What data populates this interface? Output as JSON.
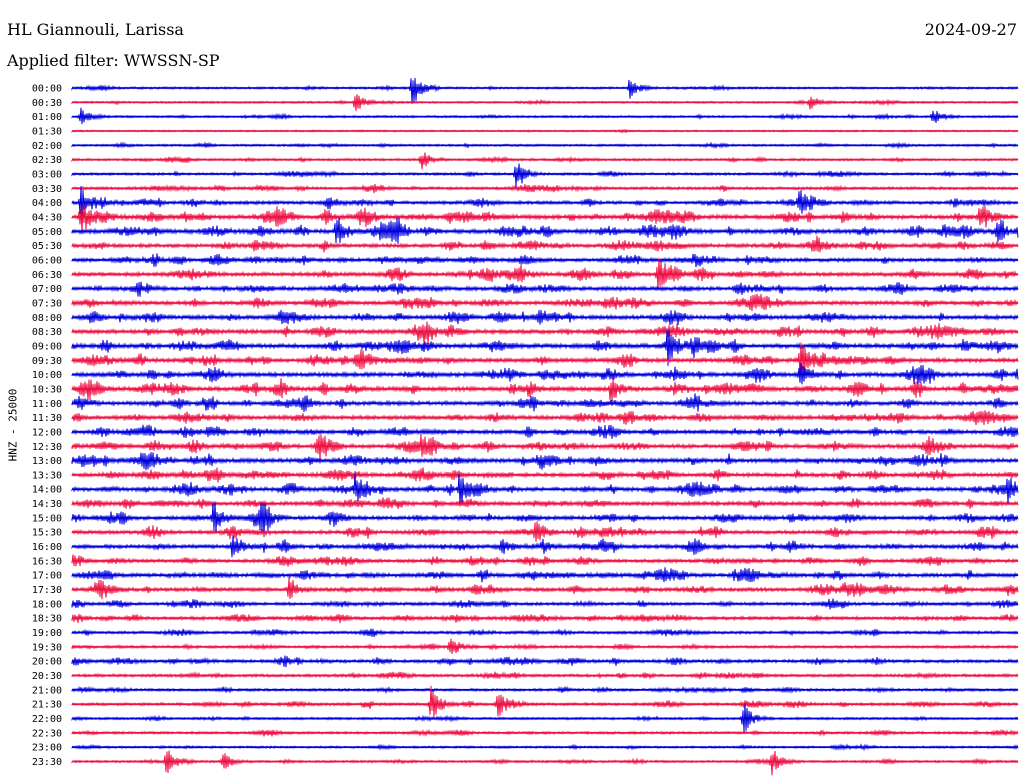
{
  "header": {
    "station": "HL Giannouli, Larissa",
    "date": "2024-09-27",
    "filter": "Applied filter: WWSSN-SP"
  },
  "chart_data": {
    "type": "line",
    "title": "HL Giannouli, Larissa",
    "date": "2024-09-27",
    "filter": "WWSSN-SP",
    "ylabel": "HNZ - 25000",
    "xlabel": "",
    "grid": false,
    "row_times": [
      "00:00",
      "00:30",
      "01:00",
      "01:30",
      "02:00",
      "02:30",
      "03:00",
      "03:30",
      "04:00",
      "04:30",
      "05:00",
      "05:30",
      "06:00",
      "06:30",
      "07:00",
      "07:30",
      "08:00",
      "08:30",
      "09:00",
      "09:30",
      "10:00",
      "10:30",
      "11:00",
      "11:30",
      "12:00",
      "12:30",
      "13:00",
      "13:30",
      "14:00",
      "14:30",
      "15:00",
      "15:30",
      "16:00",
      "16:30",
      "17:00",
      "17:30",
      "18:00",
      "18:30",
      "19:00",
      "19:30",
      "20:00",
      "20:30",
      "21:00",
      "21:30",
      "22:00",
      "22:30",
      "23:00",
      "23:30"
    ],
    "trace_colors": [
      "#0000dd",
      "#ee1144"
    ],
    "row_activity": [
      0.25,
      0.2,
      0.25,
      0.12,
      0.25,
      0.3,
      0.35,
      0.45,
      0.6,
      0.85,
      0.9,
      0.75,
      0.7,
      0.8,
      0.75,
      0.75,
      0.8,
      0.85,
      0.9,
      0.85,
      0.85,
      0.9,
      0.8,
      0.8,
      0.75,
      0.8,
      0.85,
      0.75,
      0.8,
      0.75,
      0.75,
      0.7,
      0.75,
      0.65,
      0.75,
      0.7,
      0.55,
      0.6,
      0.45,
      0.4,
      0.55,
      0.45,
      0.4,
      0.45,
      0.3,
      0.35,
      0.25,
      0.3
    ],
    "events": [
      {
        "row": 0,
        "time_frac": 0.36,
        "amp": 1.0
      },
      {
        "row": 0,
        "time_frac": 0.59,
        "amp": 0.6
      },
      {
        "row": 1,
        "time_frac": 0.3,
        "amp": 0.55
      },
      {
        "row": 1,
        "time_frac": 0.78,
        "amp": 0.4
      },
      {
        "row": 2,
        "time_frac": 0.01,
        "amp": 0.5
      },
      {
        "row": 2,
        "time_frac": 0.91,
        "amp": 0.45
      },
      {
        "row": 5,
        "time_frac": 0.37,
        "amp": 0.5
      },
      {
        "row": 6,
        "time_frac": 0.47,
        "amp": 0.9
      },
      {
        "row": 8,
        "time_frac": 0.01,
        "amp": 1.0
      },
      {
        "row": 8,
        "time_frac": 0.77,
        "amp": 0.7
      },
      {
        "row": 9,
        "time_frac": 0.01,
        "amp": 1.0
      },
      {
        "row": 9,
        "time_frac": 0.96,
        "amp": 0.8
      },
      {
        "row": 10,
        "time_frac": 0.28,
        "amp": 1.0
      },
      {
        "row": 13,
        "time_frac": 0.62,
        "amp": 0.9
      },
      {
        "row": 18,
        "time_frac": 0.63,
        "amp": 1.0
      },
      {
        "row": 19,
        "time_frac": 0.77,
        "amp": 1.0
      },
      {
        "row": 20,
        "time_frac": 0.77,
        "amp": 0.9
      },
      {
        "row": 21,
        "time_frac": 0.57,
        "amp": 0.8
      },
      {
        "row": 25,
        "time_frac": 0.26,
        "amp": 0.8
      },
      {
        "row": 28,
        "time_frac": 0.3,
        "amp": 0.9
      },
      {
        "row": 28,
        "time_frac": 0.41,
        "amp": 1.0
      },
      {
        "row": 28,
        "time_frac": 0.99,
        "amp": 0.8
      },
      {
        "row": 30,
        "time_frac": 0.15,
        "amp": 0.9
      },
      {
        "row": 30,
        "time_frac": 0.2,
        "amp": 0.9
      },
      {
        "row": 31,
        "time_frac": 0.49,
        "amp": 0.8
      },
      {
        "row": 32,
        "time_frac": 0.17,
        "amp": 0.8
      },
      {
        "row": 35,
        "time_frac": 0.23,
        "amp": 0.7
      },
      {
        "row": 39,
        "time_frac": 0.4,
        "amp": 0.6
      },
      {
        "row": 43,
        "time_frac": 0.38,
        "amp": 1.0
      },
      {
        "row": 43,
        "time_frac": 0.45,
        "amp": 0.7
      },
      {
        "row": 44,
        "time_frac": 0.71,
        "amp": 0.8
      },
      {
        "row": 47,
        "time_frac": 0.1,
        "amp": 0.8
      },
      {
        "row": 47,
        "time_frac": 0.16,
        "amp": 0.6
      },
      {
        "row": 47,
        "time_frac": 0.74,
        "amp": 0.7
      }
    ]
  }
}
